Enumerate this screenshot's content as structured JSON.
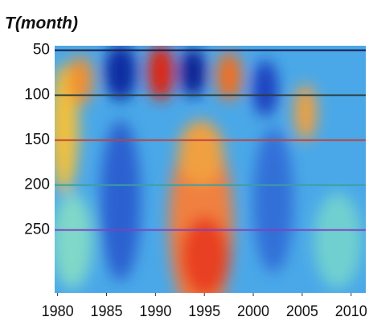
{
  "chart_data": {
    "type": "heatmap",
    "title": "T(month)",
    "xlim": [
      1979.7,
      2011.5
    ],
    "xticks": [
      1980,
      1985,
      1990,
      1995,
      2000,
      2005,
      2010
    ],
    "ylim": [
      320,
      45
    ],
    "yticks": [
      50,
      100,
      150,
      200,
      250
    ],
    "grid": true,
    "grid_colors": [
      "#1a1a4a",
      "#2a3a3a",
      "#c0403a",
      "#3aa0a0",
      "#8040c0"
    ]
  }
}
